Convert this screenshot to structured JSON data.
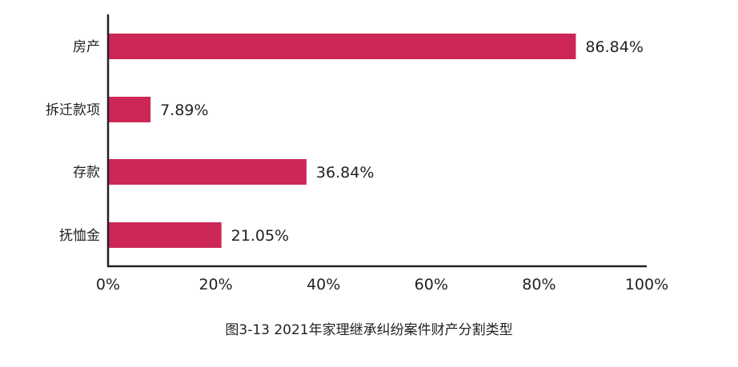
{
  "chart_data": {
    "type": "bar",
    "orientation": "horizontal",
    "categories": [
      "房产",
      "拆迁款项",
      "存款",
      "抚恤金"
    ],
    "values": [
      86.84,
      7.89,
      36.84,
      21.05
    ],
    "value_labels": [
      "86.84%",
      "7.89%",
      "36.84%",
      "21.05%"
    ],
    "xlim": [
      0,
      100
    ],
    "x_ticks": [
      0,
      20,
      40,
      60,
      80,
      100
    ],
    "x_tick_labels": [
      "0%",
      "20%",
      "40%",
      "60%",
      "80%",
      "100%"
    ],
    "grid": false,
    "bar_color": "#cc2757",
    "caption": "图3-13  2021年家理继承纠纷案件财产分割类型"
  }
}
